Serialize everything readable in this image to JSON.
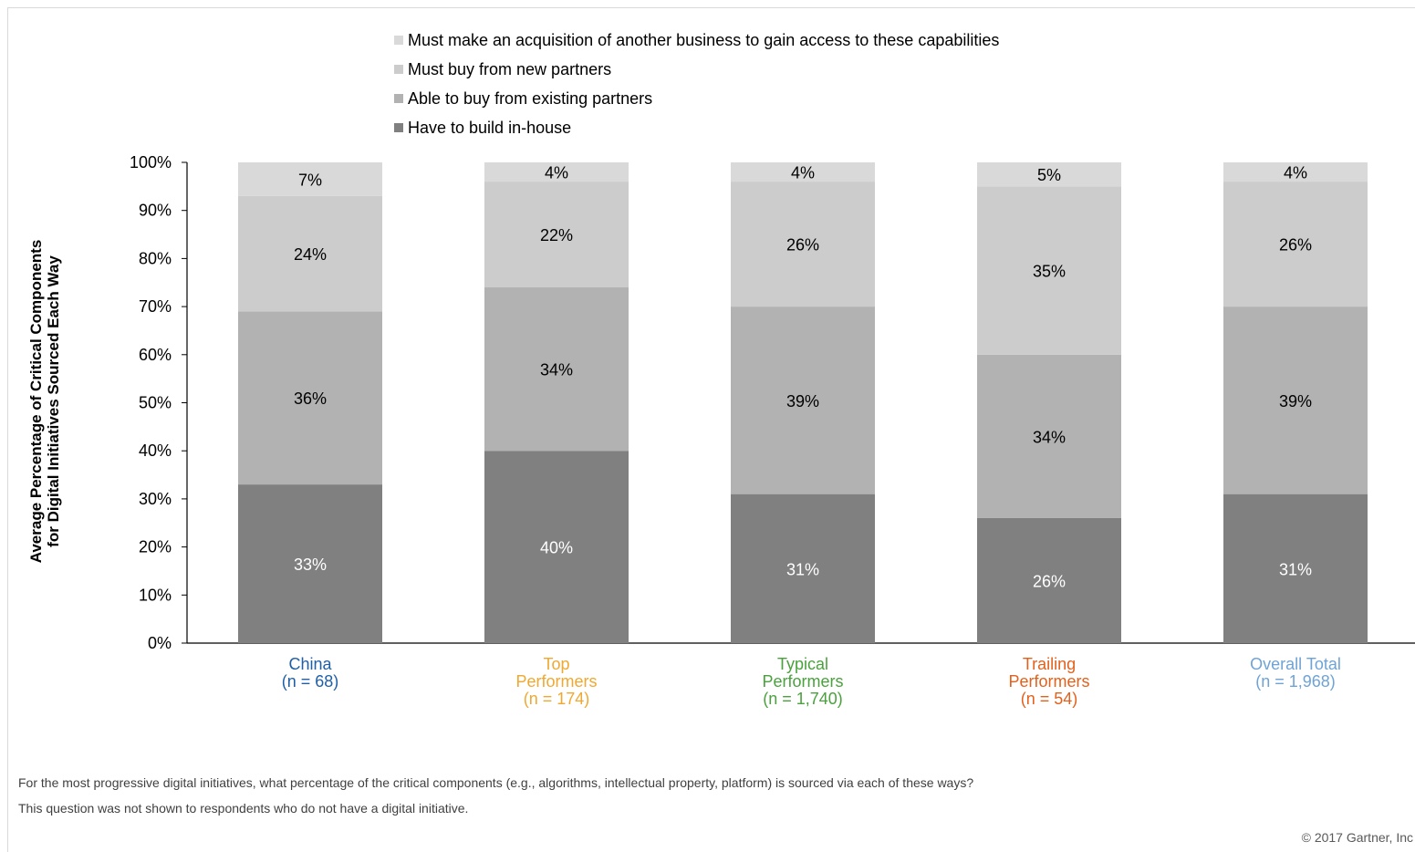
{
  "chart_data": {
    "type": "bar",
    "stacked": true,
    "ylabel": [
      "Average Percentage of Critical Components",
      "for Digital Initiatives Sourced Each Way"
    ],
    "ylim": [
      0,
      100
    ],
    "yticks": [
      "0%",
      "10%",
      "20%",
      "30%",
      "40%",
      "50%",
      "60%",
      "70%",
      "80%",
      "90%",
      "100%"
    ],
    "legend_position": "top",
    "categories": [
      {
        "lines": [
          "China",
          "(n = 68)"
        ],
        "color": "#1f5fa6"
      },
      {
        "lines": [
          "Top",
          "Performers",
          "(n = 174)"
        ],
        "color": "#f0a830"
      },
      {
        "lines": [
          "Typical",
          "Performers",
          "(n = 1,740)"
        ],
        "color": "#4aa23c"
      },
      {
        "lines": [
          "Trailing",
          "Performers",
          "(n = 54)"
        ],
        "color": "#e2611c"
      },
      {
        "lines": [
          "Overall Total",
          "(n = 1,968)"
        ],
        "color": "#6fa3d6"
      }
    ],
    "series": [
      {
        "name": "Have to build in-house",
        "color": "#808080",
        "label_color": "#ffffff",
        "values": [
          33,
          40,
          31,
          26,
          31
        ],
        "labels": [
          "33%",
          "40%",
          "31%",
          "26%",
          "31%"
        ]
      },
      {
        "name": "Able to buy from existing partners",
        "color": "#b2b2b2",
        "label_color": "#000000",
        "values": [
          36,
          34,
          39,
          34,
          39
        ],
        "labels": [
          "36%",
          "34%",
          "39%",
          "34%",
          "39%"
        ]
      },
      {
        "name": "Must buy from new partners",
        "color": "#cccccc",
        "label_color": "#000000",
        "values": [
          24,
          22,
          26,
          35,
          26
        ],
        "labels": [
          "24%",
          "22%",
          "26%",
          "35%",
          "26%"
        ]
      },
      {
        "name": "Must make an acquisition of another business to gain access to these capabilities",
        "color": "#d9d9d9",
        "label_color": "#000000",
        "values": [
          7,
          4,
          4,
          5,
          4
        ],
        "labels": [
          "7%",
          "4%",
          "4%",
          "5%",
          "4%"
        ]
      }
    ]
  },
  "notes": {
    "line1": "For the most progressive digital initiatives, what percentage of the critical components (e.g., algorithms, intellectual property, platform) is sourced via each of these ways?",
    "line2": "This question was not shown to respondents who do not have a digital initiative."
  },
  "copyright": "© 2017 Gartner, Inc"
}
